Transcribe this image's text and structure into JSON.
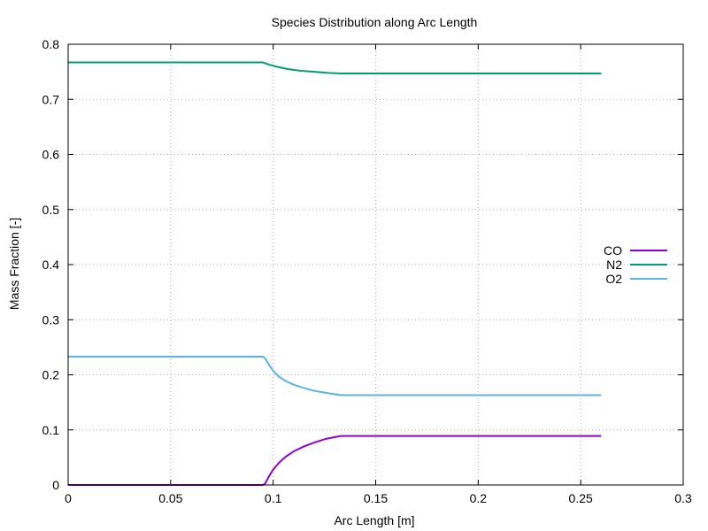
{
  "chart_data": {
    "type": "line",
    "title": "Species Distribution along Arc Length",
    "xlabel": "Arc Length [m]",
    "ylabel": "Mass Fraction [-]",
    "xlim": [
      0,
      0.3
    ],
    "ylim": [
      0,
      0.8
    ],
    "xticks": [
      0,
      0.05,
      0.1,
      0.15,
      0.2,
      0.25,
      0.3
    ],
    "xtick_labels": [
      "0",
      "0.05",
      "0.1",
      "0.15",
      "0.2",
      "0.25",
      "0.3"
    ],
    "yticks": [
      0,
      0.1,
      0.2,
      0.3,
      0.4,
      0.5,
      0.6,
      0.7,
      0.8
    ],
    "ytick_labels": [
      "0",
      "0.1",
      "0.2",
      "0.3",
      "0.4",
      "0.5",
      "0.6",
      "0.7",
      "0.8"
    ],
    "grid": true,
    "legend_position": "right",
    "series": [
      {
        "name": "CO",
        "color": "#9400d3",
        "x": [
          0,
          0.095,
          0.096,
          0.098,
          0.1,
          0.103,
          0.106,
          0.11,
          0.115,
          0.12,
          0.126,
          0.133,
          0.26
        ],
        "y": [
          0,
          0,
          0.002,
          0.016,
          0.028,
          0.041,
          0.051,
          0.061,
          0.07,
          0.077,
          0.084,
          0.089,
          0.089
        ]
      },
      {
        "name": "N2",
        "color": "#009e73",
        "x": [
          0,
          0.095,
          0.098,
          0.102,
          0.107,
          0.113,
          0.12,
          0.127,
          0.133,
          0.26
        ],
        "y": [
          0.767,
          0.767,
          0.763,
          0.759,
          0.755,
          0.752,
          0.75,
          0.748,
          0.747,
          0.747
        ]
      },
      {
        "name": "O2",
        "color": "#56b4e9",
        "x": [
          0,
          0.095,
          0.096,
          0.098,
          0.1,
          0.103,
          0.106,
          0.11,
          0.115,
          0.12,
          0.126,
          0.133,
          0.26
        ],
        "y": [
          0.233,
          0.233,
          0.23,
          0.218,
          0.207,
          0.196,
          0.189,
          0.182,
          0.176,
          0.171,
          0.167,
          0.163,
          0.163
        ]
      }
    ]
  }
}
